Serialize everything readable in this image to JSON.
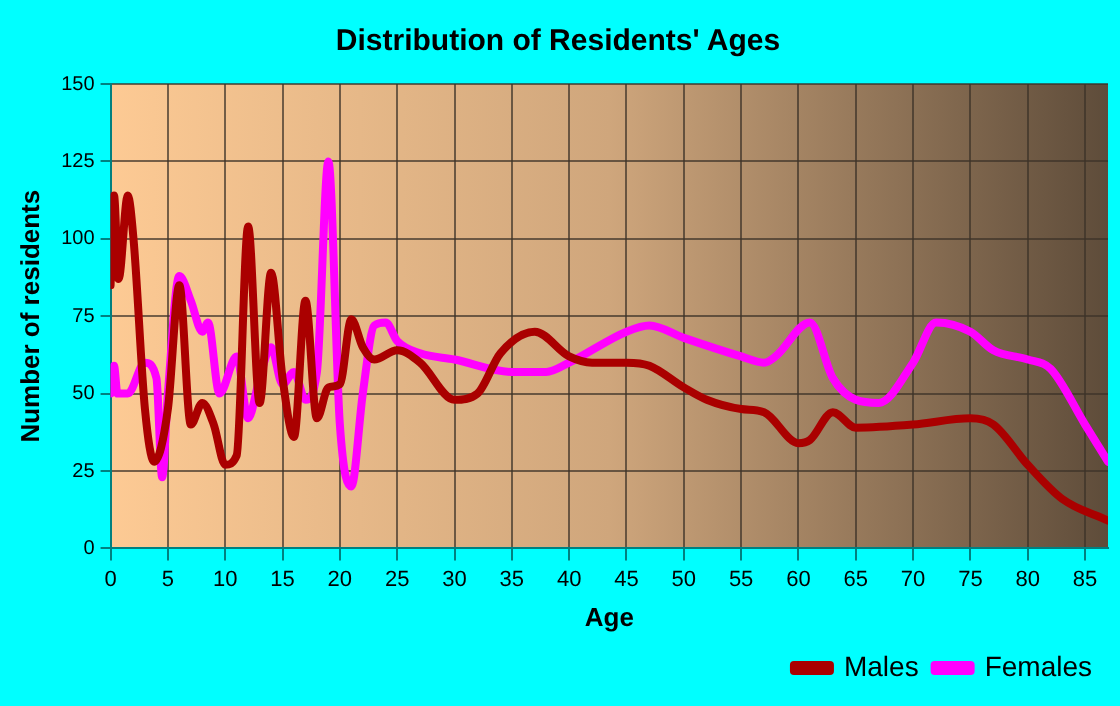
{
  "chart_data": {
    "type": "line",
    "title": "Distribution of Residents' Ages",
    "xlabel": "Age",
    "ylabel": "Number of residents",
    "xlim": [
      0,
      87
    ],
    "xticks": [
      0,
      5,
      10,
      15,
      20,
      25,
      30,
      35,
      40,
      45,
      50,
      55,
      60,
      65,
      70,
      75,
      80,
      85
    ],
    "ylim": [
      0,
      150
    ],
    "yticks": [
      0,
      25,
      50,
      75,
      100,
      125,
      150
    ],
    "grid": true,
    "legend": "bottom right",
    "marker": "none",
    "line_style": "solid",
    "series": [
      {
        "name": "Males",
        "color": "#aa0000",
        "x": [
          0,
          0.3,
          0.7,
          1.5,
          2,
          3,
          3.8,
          5,
          6,
          7,
          8,
          9,
          10,
          11,
          12,
          13,
          14,
          15,
          16,
          17,
          18,
          19,
          20,
          21,
          22,
          23,
          25,
          27,
          30,
          32,
          34,
          37,
          40,
          42,
          45,
          47,
          50,
          52,
          55,
          57,
          60,
          61,
          63,
          65,
          70,
          75,
          77,
          80,
          83,
          87
        ],
        "values": [
          85,
          114,
          87,
          114,
          100,
          45,
          28,
          45,
          85,
          40,
          47,
          40,
          27,
          30,
          104,
          47,
          89,
          55,
          36,
          80,
          42,
          52,
          53,
          74,
          65,
          61,
          64,
          60,
          48,
          50,
          63,
          70,
          62,
          60,
          60,
          59,
          52,
          48,
          45,
          44,
          34,
          35,
          44,
          39,
          40,
          42,
          40,
          27,
          16,
          9
        ]
      },
      {
        "name": "Females",
        "color": "#ff00ff",
        "x": [
          0,
          0.3,
          0.6,
          1.5,
          3,
          4,
          4.5,
          5,
          6,
          7,
          8,
          8.5,
          9.5,
          11,
          12,
          13,
          14,
          15,
          16,
          17,
          18,
          19,
          20,
          21,
          22,
          23,
          24,
          25,
          27,
          30,
          35,
          38,
          40,
          45,
          47,
          50,
          55,
          57,
          58,
          61,
          63,
          65,
          67,
          70,
          72,
          75,
          77,
          80,
          82,
          85,
          87
        ],
        "values": [
          50,
          59,
          50,
          50,
          60,
          55,
          23,
          50,
          88,
          80,
          70,
          73,
          50,
          62,
          42,
          55,
          65,
          53,
          57,
          48,
          57,
          125,
          40,
          20,
          50,
          72,
          73,
          67,
          63,
          61,
          57,
          57,
          60,
          70,
          72,
          68,
          62,
          60,
          62,
          73,
          55,
          48,
          47,
          60,
          73,
          70,
          64,
          61,
          58,
          40,
          28
        ]
      }
    ]
  }
}
